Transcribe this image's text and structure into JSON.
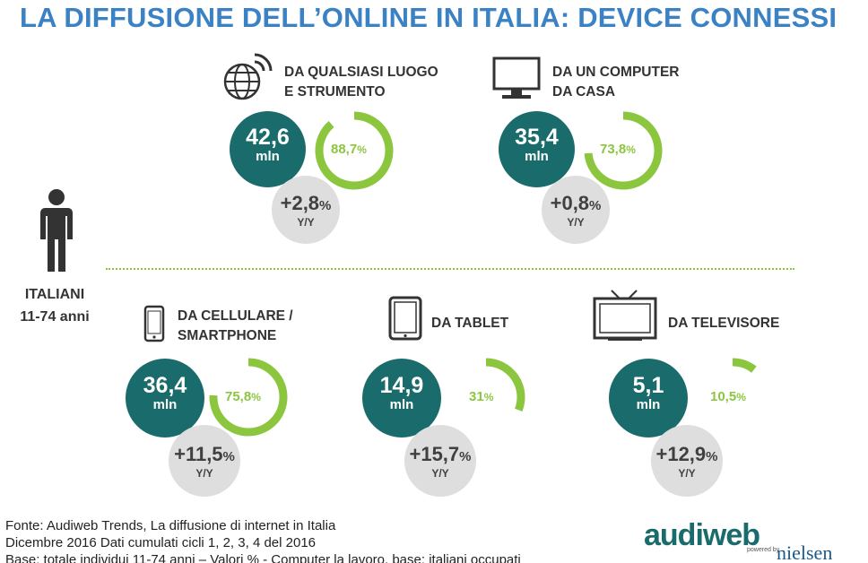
{
  "title": "LA DIFFUSIONE DELL’ONLINE IN ITALIA: DEVICE CONNESSI",
  "audience": {
    "line1": "ITALIANI",
    "line2": "11-74 anni",
    "icon": "person-icon"
  },
  "colors": {
    "title": "#3b82c4",
    "teal": "#1a6b6b",
    "green": "#8cc63f",
    "gray": "#dedede"
  },
  "devices": [
    {
      "id": "any",
      "icon": "globe-wifi-icon",
      "label1": "DA QUALSIASI LUOGO",
      "label2": "E STRUMENTO",
      "value": "42,6",
      "unit": "mln",
      "pct": "88,7",
      "pct_value": 88.7,
      "growth": "+2,8",
      "yy": "Y/Y"
    },
    {
      "id": "computer",
      "icon": "monitor-icon",
      "label1": "DA UN COMPUTER",
      "label2": "DA CASA",
      "value": "35,4",
      "unit": "mln",
      "pct": "73,8",
      "pct_value": 73.8,
      "growth": "+0,8",
      "yy": "Y/Y"
    },
    {
      "id": "smartphone",
      "icon": "smartphone-icon",
      "label1": "DA CELLULARE /",
      "label2": "SMARTPHONE",
      "value": "36,4",
      "unit": "mln",
      "pct": "75,8",
      "pct_value": 75.8,
      "growth": "+11,5",
      "yy": "Y/Y"
    },
    {
      "id": "tablet",
      "icon": "tablet-icon",
      "label1": "DA TABLET",
      "label2": "",
      "value": "14,9",
      "unit": "mln",
      "pct": "31",
      "pct_value": 31,
      "growth": "+15,7",
      "yy": "Y/Y"
    },
    {
      "id": "tv",
      "icon": "tv-icon",
      "label1": "DA TELEVISORE",
      "label2": "",
      "value": "5,1",
      "unit": "mln",
      "pct": "10,5",
      "pct_value": 10.5,
      "growth": "+12,9",
      "yy": "Y/Y"
    }
  ],
  "percent_sign": "%",
  "footer": {
    "line1": "Fonte: Audiweb Trends, La diffusione di internet in Italia",
    "line2": "Dicembre 2016  Dati cumulati cicli 1, 2, 3, 4 del 2016",
    "line3": "Base: totale individui 11-74 anni – Valori % -  Computer la lavoro, base: italiani occupati"
  },
  "logo": {
    "audiweb": "audiweb",
    "powered": "powered by",
    "nielsen": "nielsen"
  }
}
